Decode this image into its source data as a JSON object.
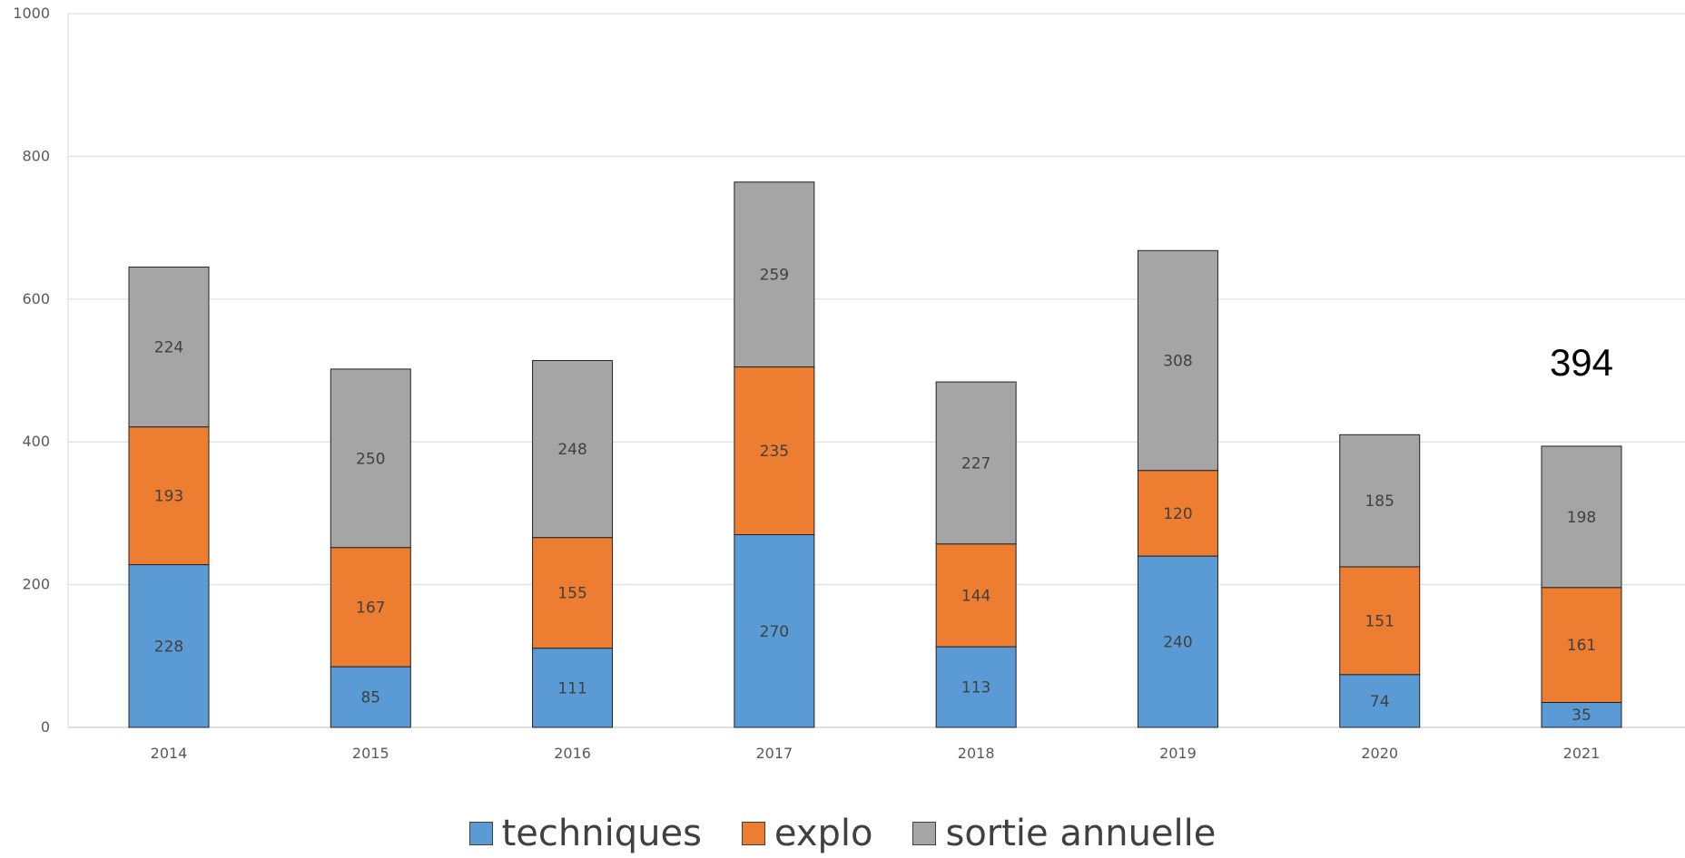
{
  "chart_data": {
    "type": "bar",
    "stacked": true,
    "categories": [
      "2014",
      "2015",
      "2016",
      "2017",
      "2018",
      "2019",
      "2020",
      "2021"
    ],
    "series": [
      {
        "name": "techniques",
        "color": "#5B9BD5",
        "values": [
          228,
          85,
          111,
          270,
          113,
          240,
          74,
          35
        ]
      },
      {
        "name": "explo",
        "color": "#ED7D31",
        "values": [
          193,
          167,
          155,
          235,
          144,
          120,
          151,
          161
        ]
      },
      {
        "name": "sortie annuelle",
        "color": "#A5A5A5",
        "values": [
          224,
          250,
          248,
          259,
          227,
          308,
          185,
          198
        ]
      }
    ],
    "ylim": [
      0,
      1000
    ],
    "yticks": [
      0,
      200,
      400,
      600,
      800,
      1000
    ],
    "grid": true,
    "legend_position": "bottom",
    "annotations": [
      {
        "text": "394",
        "category": "2021"
      }
    ]
  }
}
